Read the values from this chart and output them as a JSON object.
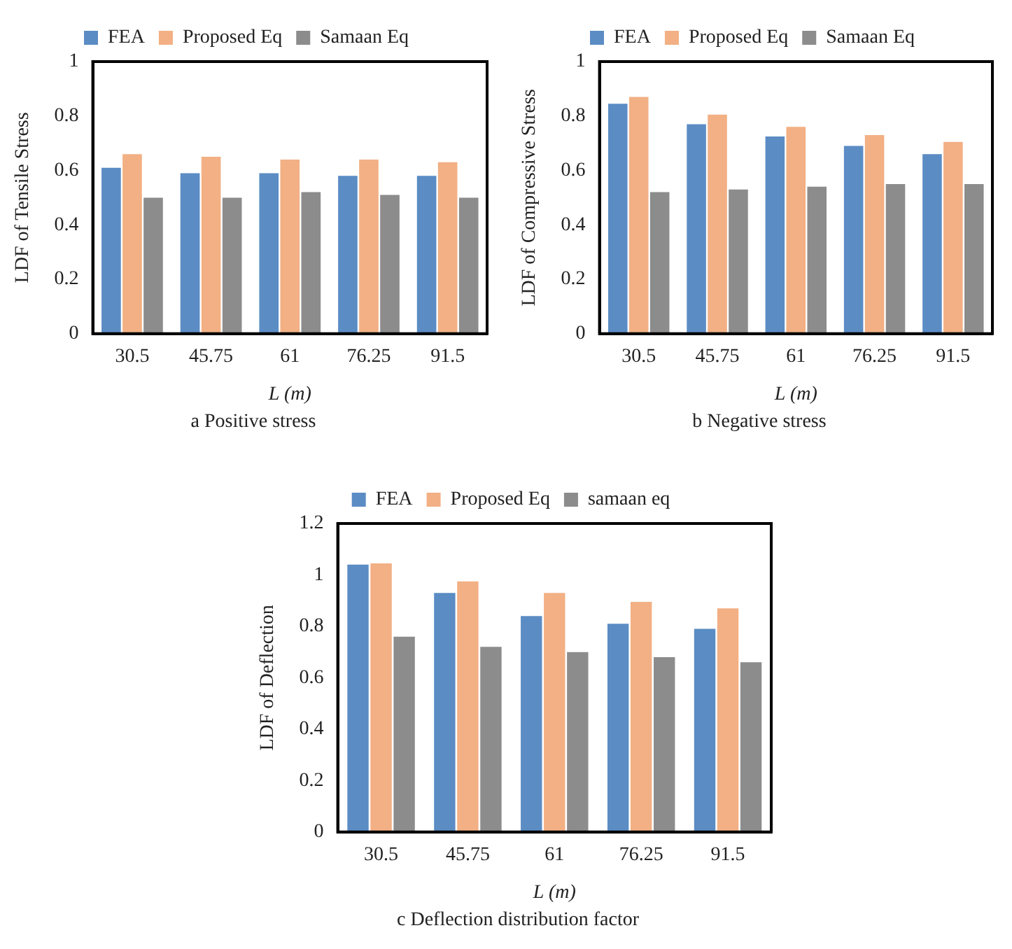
{
  "chart_data": [
    {
      "type": "bar",
      "title": "a Positive stress",
      "xlabel": "L (m)",
      "ylabel": "LDF of Tensile Stress",
      "categories": [
        "30.5",
        "45.75",
        "61",
        "76.25",
        "91.5"
      ],
      "series": [
        {
          "name": "FEA",
          "color": "#5b8cc4",
          "values": [
            0.61,
            0.59,
            0.59,
            0.58,
            0.58
          ]
        },
        {
          "name": "Proposed Eq",
          "color": "#f2b084",
          "values": [
            0.66,
            0.65,
            0.64,
            0.64,
            0.63
          ]
        },
        {
          "name": "Samaan Eq",
          "color": "#8c8c8c",
          "values": [
            0.5,
            0.5,
            0.52,
            0.51,
            0.5
          ]
        }
      ],
      "ylim": [
        0,
        1
      ],
      "yticks": [
        0,
        0.2,
        0.4,
        0.6,
        0.8,
        1
      ],
      "grid": false,
      "legend": "top"
    },
    {
      "type": "bar",
      "title": "b Negative stress",
      "xlabel": "L (m)",
      "ylabel": "LDF of Compressive Stress",
      "categories": [
        "30.5",
        "45.75",
        "61",
        "76.25",
        "91.5"
      ],
      "series": [
        {
          "name": "FEA",
          "color": "#5b8cc4",
          "values": [
            0.845,
            0.77,
            0.725,
            0.69,
            0.66
          ]
        },
        {
          "name": "Proposed Eq",
          "color": "#f2b084",
          "values": [
            0.87,
            0.805,
            0.76,
            0.73,
            0.705
          ]
        },
        {
          "name": "Samaan Eq",
          "color": "#8c8c8c",
          "values": [
            0.52,
            0.53,
            0.54,
            0.55,
            0.55
          ]
        }
      ],
      "ylim": [
        0,
        1
      ],
      "yticks": [
        0,
        0.2,
        0.4,
        0.6,
        0.8,
        1
      ],
      "grid": false,
      "legend": "top"
    },
    {
      "type": "bar",
      "title": "c Deflection distribution factor",
      "xlabel": "L (m)",
      "ylabel": "LDF of Deflection",
      "categories": [
        "30.5",
        "45.75",
        "61",
        "76.25",
        "91.5"
      ],
      "series": [
        {
          "name": "FEA",
          "color": "#5b8cc4",
          "values": [
            1.04,
            0.93,
            0.84,
            0.81,
            0.79
          ]
        },
        {
          "name": "Proposed Eq",
          "color": "#f2b084",
          "values": [
            1.045,
            0.975,
            0.93,
            0.895,
            0.87
          ]
        },
        {
          "name": "samaan eq",
          "color": "#8c8c8c",
          "values": [
            0.76,
            0.72,
            0.7,
            0.68,
            0.66
          ]
        }
      ],
      "ylim": [
        0,
        1.2
      ],
      "yticks": [
        0,
        0.2,
        0.4,
        0.6,
        0.8,
        1,
        1.2
      ],
      "grid": false,
      "legend": "top"
    }
  ]
}
